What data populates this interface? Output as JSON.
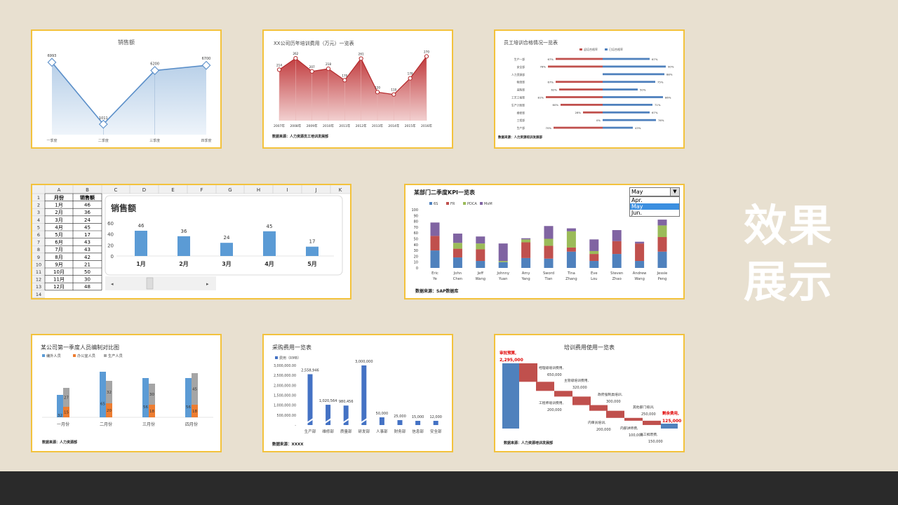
{
  "showcase_title": [
    "效果",
    "展示"
  ],
  "cards": {
    "sales_line": {
      "title": "销售额",
      "chart_data": {
        "type": "area",
        "categories": [
          "一季度",
          "二季度",
          "三季度",
          "四季度"
        ],
        "values": [
          6993,
          1011,
          6200,
          6700
        ],
        "ylim": [
          0,
          8000
        ],
        "color": "#5b8fc9"
      }
    },
    "training_cost": {
      "title": "XX公司历年培训费用（万元）一览表",
      "source": "数据来源：人力资源员工培训发展部",
      "chart_data": {
        "type": "area",
        "categories": [
          "2007年",
          "2008年",
          "2009年",
          "2010年",
          "2011年",
          "2012年",
          "2013年",
          "2014年",
          "2015年",
          "2016年"
        ],
        "values": [
          214,
          262,
          207,
          218,
          170,
          261,
          120,
          110,
          178,
          270
        ],
        "ylim": [
          0,
          280
        ],
        "color": "#c0393b"
      }
    },
    "training_pass": {
      "title": "员工培训合格情况一览表",
      "legend": [
        "返培合格率",
        "已培合格率"
      ],
      "source": "数据来源：人力资源培训发展部",
      "chart_data": {
        "type": "bar",
        "categories": [
          "生产一部",
          "安全部",
          "人力资源部",
          "物流部",
          "采购部",
          "工艺工程部",
          "生产计划部",
          "维修部",
          "工程部",
          "生产部"
        ],
        "series": [
          {
            "name": "返培合格率",
            "values": [
              67,
              78,
              null,
              67,
              62,
              81,
              60,
              28,
              0,
              70
            ],
            "color": "#c0504d"
          },
          {
            "name": "已培合格率",
            "values": [
              67,
              90,
              88,
              75,
              50,
              86,
              71,
              67,
              76,
              43
            ],
            "color": "#4f81bd"
          }
        ]
      }
    },
    "sheet": {
      "col_headers": [
        "",
        "A",
        "B",
        "C",
        "D",
        "E",
        "F",
        "G",
        "H",
        "I",
        "J",
        "K"
      ],
      "row_headers": [
        "1",
        "2",
        "3",
        "4",
        "5",
        "6",
        "7",
        "8",
        "9",
        "10",
        "11",
        "12",
        "13",
        "14"
      ],
      "headers": [
        "月份",
        "销售额"
      ],
      "rows": [
        [
          "1月",
          "46"
        ],
        [
          "2月",
          "36"
        ],
        [
          "3月",
          "24"
        ],
        [
          "4月",
          "45"
        ],
        [
          "5月",
          "17"
        ],
        [
          "6月",
          "43"
        ],
        [
          "7月",
          "43"
        ],
        [
          "8月",
          "42"
        ],
        [
          "9月",
          "21"
        ],
        [
          "10月",
          "50"
        ],
        [
          "11月",
          "30"
        ],
        [
          "12月",
          "48"
        ]
      ],
      "chart_title": "销售额",
      "chart_data": {
        "type": "bar",
        "categories": [
          "1月",
          "2月",
          "3月",
          "4月",
          "5月"
        ],
        "values": [
          46,
          36,
          24,
          45,
          17
        ],
        "ylim": [
          0,
          60
        ],
        "yticks": [
          0,
          20,
          40,
          60
        ],
        "color": "#5b9bd5"
      }
    },
    "kpi": {
      "title": "某部门二季度KPI一览表",
      "source": "数据来源：SAP数据库",
      "dropdown": {
        "value": "May",
        "options": [
          "Apr.",
          "May",
          "Jun."
        ],
        "selected": "May"
      },
      "chart_data": {
        "type": "bar",
        "categories": [
          "Eric Ye",
          "John Chen",
          "Jeff Wang",
          "Johnny Yuan",
          "Amy Yang",
          "Sword Tian",
          "Tina Zhang",
          "Eve Lou",
          "Steven Zhao",
          "Andrew Wang",
          "Jessie Peng"
        ],
        "ylim": [
          0,
          100
        ],
        "yticks": [
          0,
          10,
          20,
          30,
          40,
          50,
          60,
          70,
          80,
          90,
          100
        ],
        "series": [
          {
            "name": "6S",
            "values": [
              30,
              18,
              12,
              10,
              17,
              16,
              28,
              12,
              24,
              12,
              28
            ],
            "color": "#4f81bd"
          },
          {
            "name": "FR",
            "values": [
              25,
              15,
              20,
              0,
              27,
              22,
              7,
              12,
              22,
              30,
              25
            ],
            "color": "#c0504d"
          },
          {
            "name": "PDCA",
            "values": [
              0,
              10,
              10,
              2,
              5,
              12,
              28,
              5,
              0,
              0,
              20
            ],
            "color": "#9bbb59"
          },
          {
            "name": "MoM",
            "values": [
              23,
              16,
              12,
              30,
              2,
              22,
              5,
              20,
              19,
              3,
              10
            ],
            "color": "#8064a2"
          }
        ]
      }
    },
    "staffing": {
      "title": "某公司第一季度人员编制对比图",
      "source": "数据来源：人力资源部",
      "chart_data": {
        "type": "bar",
        "categories": [
          "一月份",
          "二月份",
          "三月份",
          "四月份"
        ],
        "series": [
          {
            "name": "编外人员",
            "values": [
              32,
              65,
              56,
              56
            ],
            "color": "#5b9bd5"
          },
          {
            "name": "办公室人员",
            "values": [
              15,
              20,
              18,
              18
            ],
            "color": "#ed7d31"
          },
          {
            "name": "生产人员",
            "values": [
              27,
              32,
              30,
              45
            ],
            "color": "#a5a5a5"
          }
        ]
      }
    },
    "purchase": {
      "title": "采购费用一览表",
      "legend": "费用（RMB）",
      "source": "数据来源：XXXX",
      "yticks": [
        "3,000,000.00",
        "2,500,000.00",
        "2,000,000.00",
        "1,500,000.00",
        "1,000,000.00",
        "500,000.00",
        "-"
      ],
      "chart_data": {
        "type": "bar",
        "categories": [
          "生产部",
          "维修部",
          "质量部",
          "研发部",
          "人事部",
          "财务部",
          "信息部",
          "安全部"
        ],
        "values": [
          2558946,
          1020564,
          980456,
          3000000,
          50000,
          25000,
          15000,
          12000
        ],
        "labels": [
          "2,558,946",
          "1,020,564",
          "980,456",
          "3,000,000",
          "50,000",
          "25,000",
          "15,000",
          "12,000"
        ],
        "color": "#4472c4"
      }
    },
    "waterfall": {
      "title": "培训费用使用一览表",
      "source": "数据来源：人力资源培训发展部",
      "chart_data": {
        "type": "bar",
        "categories": [
          "审批预算",
          "经理级培训费用",
          "主管级培训费用",
          "工程师培训费用",
          "教师强制类培训",
          "内审员培训",
          "其他部门培训",
          "内部讲师费",
          "员工拇瓒费",
          "剩余费用"
        ],
        "values": [
          2295000,
          650000,
          320000,
          200000,
          300000,
          200000,
          250000,
          100000,
          150000,
          125000
        ],
        "labels": [
          "2,295,000",
          "650,000",
          "320,000",
          "200,000",
          "300,000",
          "200,000",
          "250,000",
          "100,000",
          "150,000",
          "125,000"
        ],
        "text": [
          "审批预算,",
          "经理级培训费用,",
          "主管级培训费用,",
          "工程师培训费用,",
          "政府强制类培训,",
          "内审员培训,",
          "其他部门培训,",
          "内部讲师费,",
          "员工拇瓒费,",
          "剩余费用,"
        ]
      }
    }
  }
}
